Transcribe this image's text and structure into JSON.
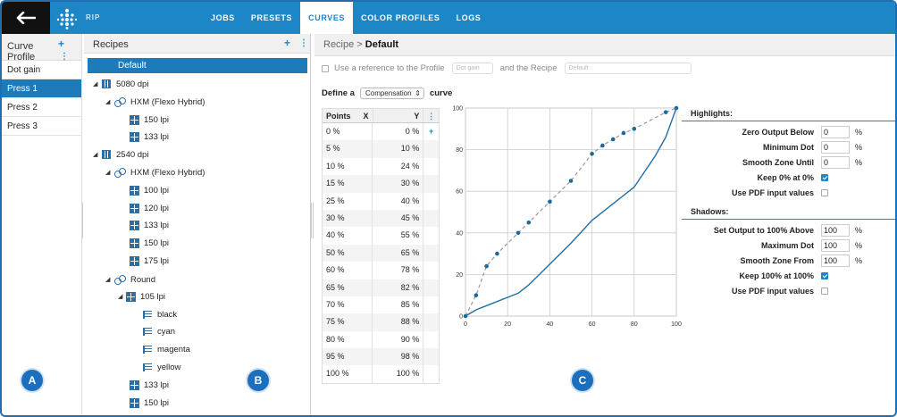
{
  "topbar": {
    "rip_label": "RIP",
    "nav": [
      "JOBS",
      "PRESETS",
      "CURVES",
      "COLOR PROFILES",
      "LOGS"
    ],
    "active_tab": "CURVES"
  },
  "panelA": {
    "title": "Curve Profile",
    "items": [
      "Dot gain",
      "Press 1",
      "Press 2",
      "Press 3"
    ],
    "selected": "Press 1",
    "badge": "A"
  },
  "panelB": {
    "title": "Recipes",
    "default_label": "Default",
    "tree": {
      "dpi1": "5080 dpi",
      "hxm1": "HXM (Flexo Hybrid)",
      "hxm1_lpi": [
        "150 lpi",
        "133 lpi"
      ],
      "dpi2": "2540 dpi",
      "hxm2": "HXM (Flexo Hybrid)",
      "hxm2_lpi": [
        "100 lpi",
        "120 lpi",
        "133 lpi",
        "150 lpi",
        "175 lpi"
      ],
      "round": "Round",
      "round_105": "105 lpi",
      "round_105_colors": [
        "black",
        "cyan",
        "magenta",
        "yellow"
      ],
      "round_lpi": [
        "133 lpi",
        "150 lpi"
      ]
    },
    "badge": "B"
  },
  "panelC": {
    "breadcrumb_prefix": "Recipe >",
    "breadcrumb_current": "Default",
    "ref_label": "Use a reference to the Profile",
    "ref_profile": "Dot gain",
    "ref_and": "and the Recipe",
    "ref_recipe": "Default",
    "define_prefix": "Define a",
    "define_select": "Compensation",
    "define_suffix": "curve",
    "table_headers": {
      "points": "Points",
      "x": "X",
      "y": "Y"
    },
    "table_rows": [
      [
        "0 %",
        "0 %"
      ],
      [
        "5 %",
        "10 %"
      ],
      [
        "10 %",
        "24 %"
      ],
      [
        "15 %",
        "30 %"
      ],
      [
        "25 %",
        "40 %"
      ],
      [
        "30 %",
        "45 %"
      ],
      [
        "40 %",
        "55 %"
      ],
      [
        "50 %",
        "65 %"
      ],
      [
        "60 %",
        "78 %"
      ],
      [
        "65 %",
        "82 %"
      ],
      [
        "70 %",
        "85 %"
      ],
      [
        "75 %",
        "88 %"
      ],
      [
        "80 %",
        "90 %"
      ],
      [
        "95 %",
        "98 %"
      ],
      [
        "100 %",
        "100 %"
      ]
    ],
    "highlights_title": "Highlights:",
    "highlights": {
      "zero_output_label": "Zero Output Below",
      "zero_output_value": "0",
      "min_dot_label": "Minimum Dot",
      "min_dot_value": "0",
      "smooth_until_label": "Smooth Zone Until",
      "smooth_until_value": "0",
      "keep0_label": "Keep 0% at 0%",
      "keep0_checked": true,
      "pdf_label": "Use PDF input values",
      "pdf_checked": false
    },
    "shadows_title": "Shadows:",
    "shadows": {
      "set_output_label": "Set Output to 100% Above",
      "set_output_value": "100",
      "max_dot_label": "Maximum Dot",
      "max_dot_value": "100",
      "smooth_from_label": "Smooth Zone From",
      "smooth_from_value": "100",
      "keep100_label": "Keep 100% at 100%",
      "keep100_checked": true,
      "pdf_label": "Use PDF input values",
      "pdf_checked": false
    },
    "percent_unit": "%",
    "badge": "C"
  },
  "chart_data": {
    "type": "line",
    "xlim": [
      0,
      100
    ],
    "ylim": [
      0,
      100
    ],
    "x_ticks": [
      0,
      20,
      40,
      60,
      80,
      100
    ],
    "y_ticks": [
      0,
      20,
      40,
      60,
      80,
      100
    ],
    "grid": true,
    "series": [
      {
        "style": "dashed-points",
        "color": "#9a9a9a",
        "point_color": "#1a6a9c",
        "x": [
          0,
          5,
          10,
          15,
          25,
          30,
          40,
          50,
          60,
          65,
          70,
          75,
          80,
          95,
          100
        ],
        "y": [
          0,
          10,
          24,
          30,
          40,
          45,
          55,
          65,
          78,
          82,
          85,
          88,
          90,
          98,
          100
        ]
      },
      {
        "style": "solid",
        "color": "#1f6fa8",
        "x": [
          0,
          5,
          10,
          15,
          20,
          25,
          30,
          40,
          50,
          60,
          70,
          80,
          90,
          95,
          100
        ],
        "y": [
          0,
          3,
          5,
          7,
          9,
          11,
          15,
          25,
          35,
          46,
          54,
          62,
          77,
          86,
          100
        ]
      }
    ]
  }
}
